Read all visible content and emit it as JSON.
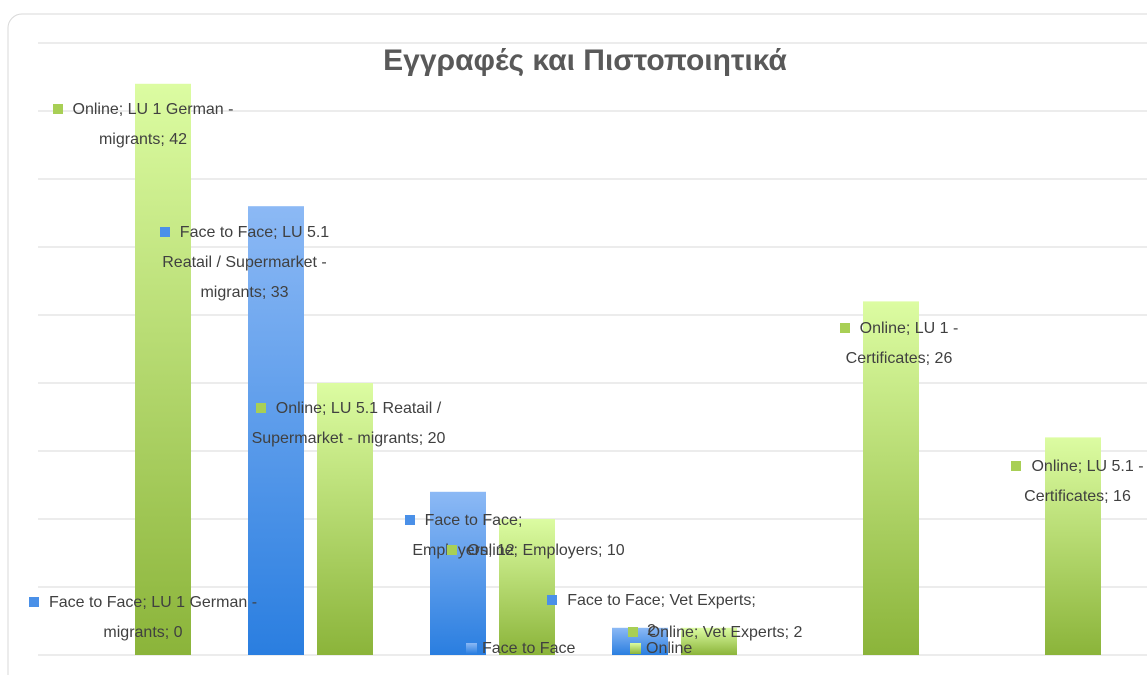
{
  "chart_data": {
    "type": "bar",
    "title": "Εγγραφές και Πιστοποιητικά",
    "ylim": [
      0,
      45
    ],
    "yticks": [
      0,
      5,
      10,
      15,
      20,
      25,
      30,
      35,
      40,
      45
    ],
    "grid": true,
    "legend": "bottom",
    "series": [
      {
        "name": "Face to Face",
        "color": "#4a90e8",
        "values": [
          0,
          33,
          12,
          2,
          null,
          null
        ],
        "value_labels": [
          "Face to Face; LU 1 German - migrants; 0",
          "Face to Face; LU 5.1 Reatail / Supermarket - migrants; 33",
          "Face to Face; Employers; 12",
          "Face to Face; Vet Experts; 2",
          null,
          null
        ]
      },
      {
        "name": "Online",
        "color": "#a8cf55",
        "values": [
          42,
          20,
          10,
          2,
          26,
          16
        ],
        "value_labels": [
          "Online; LU 1 German - migrants; 42",
          "Online; LU 5.1 Reatail / Supermarket - migrants; 20",
          "Online; Employers; 10",
          "Online; Vet Experts; 2",
          "Online; LU 1 - Certificates; 26",
          "Online; LU 5.1 - Certificates; 16"
        ]
      }
    ]
  }
}
